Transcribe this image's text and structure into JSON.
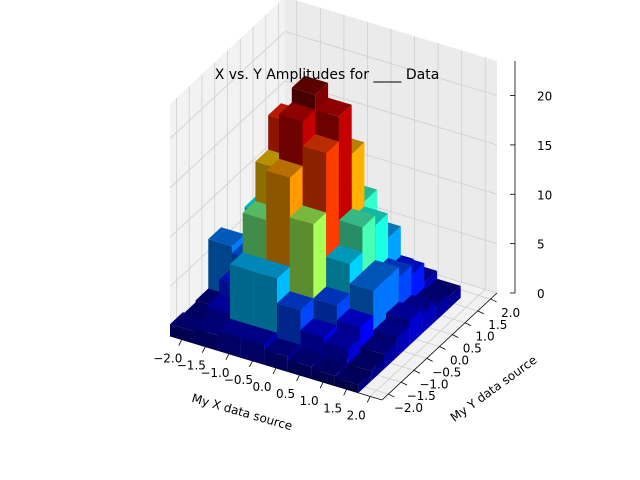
{
  "chart_data": {
    "type": "bar3d",
    "title": "X vs. Y Amplitudes for ____ Data",
    "xlabel": "My X data source",
    "ylabel": "My Y data source",
    "zlabel": "",
    "x_ticks": [
      "−2.0",
      "−1.5",
      "−1.0",
      "−0.5",
      "0.0",
      "0.5",
      "1.0",
      "1.5",
      "2.0"
    ],
    "y_ticks": [
      "−2.0",
      "−1.5",
      "−1.0",
      "−0.5",
      "0.0",
      "0.5",
      "1.0",
      "1.5",
      "2.0"
    ],
    "z_ticks": [
      "0",
      "5",
      "10",
      "15",
      "20"
    ],
    "xlim": [
      -2.0,
      2.0
    ],
    "ylim": [
      -2.0,
      2.0
    ],
    "zlim": [
      0,
      23.5
    ],
    "colormap": "jet",
    "grid": true,
    "bars": [
      {
        "x": -2.0,
        "y": -2.0,
        "z": 1.2
      },
      {
        "x": -2.0,
        "y": -1.5,
        "z": 1.0
      },
      {
        "x": -2.0,
        "y": -1.0,
        "z": 1.2
      },
      {
        "x": -2.0,
        "y": -0.5,
        "z": 6.2
      },
      {
        "x": -2.0,
        "y": 0.0,
        "z": 3.0
      },
      {
        "x": -2.0,
        "y": 0.5,
        "z": 3.5
      },
      {
        "x": -2.0,
        "y": 1.0,
        "z": 2.5
      },
      {
        "x": -2.0,
        "y": 1.5,
        "z": 1.5
      },
      {
        "x": -1.5,
        "y": -2.0,
        "z": 1.5
      },
      {
        "x": -1.5,
        "y": -1.5,
        "z": 2.5
      },
      {
        "x": -1.5,
        "y": -1.0,
        "z": 4.0
      },
      {
        "x": -1.5,
        "y": -0.5,
        "z": 5.5
      },
      {
        "x": -1.5,
        "y": 0.0,
        "z": 9.0
      },
      {
        "x": -1.5,
        "y": 0.5,
        "z": 7.0
      },
      {
        "x": -1.5,
        "y": 1.0,
        "z": 5.0
      },
      {
        "x": -1.5,
        "y": 1.5,
        "z": 2.5
      },
      {
        "x": -1.0,
        "y": -2.0,
        "z": 2.0
      },
      {
        "x": -1.0,
        "y": -1.5,
        "z": 7.5
      },
      {
        "x": -1.0,
        "y": -1.0,
        "z": 11.5
      },
      {
        "x": -1.0,
        "y": -0.5,
        "z": 15.5
      },
      {
        "x": -1.0,
        "y": 0.0,
        "z": 19.0
      },
      {
        "x": -1.0,
        "y": 0.5,
        "z": 14.5
      },
      {
        "x": -1.0,
        "y": 1.0,
        "z": 9.5
      },
      {
        "x": -1.0,
        "y": 1.5,
        "z": 3.0
      },
      {
        "x": -0.5,
        "y": -2.0,
        "z": 2.0
      },
      {
        "x": -0.5,
        "y": -1.5,
        "z": 7.5
      },
      {
        "x": -0.5,
        "y": -1.0,
        "z": 16.5
      },
      {
        "x": -0.5,
        "y": -0.5,
        "z": 21.0
      },
      {
        "x": -0.5,
        "y": 0.0,
        "z": 22.5
      },
      {
        "x": -0.5,
        "y": 0.5,
        "z": 17.5
      },
      {
        "x": -0.5,
        "y": 1.0,
        "z": 11.0
      },
      {
        "x": -0.5,
        "y": 1.5,
        "z": 3.5
      },
      {
        "x": 0.0,
        "y": -2.0,
        "z": 1.5
      },
      {
        "x": 0.0,
        "y": -1.5,
        "z": 5.0
      },
      {
        "x": 0.0,
        "y": -1.0,
        "z": 12.5
      },
      {
        "x": 0.0,
        "y": -0.5,
        "z": 18.5
      },
      {
        "x": 0.0,
        "y": 0.0,
        "z": 21.0
      },
      {
        "x": 0.0,
        "y": 0.5,
        "z": 16.0
      },
      {
        "x": 0.0,
        "y": 1.0,
        "z": 10.0
      },
      {
        "x": 0.0,
        "y": 1.5,
        "z": 3.0
      },
      {
        "x": 0.5,
        "y": -2.0,
        "z": 1.2
      },
      {
        "x": 0.5,
        "y": -1.5,
        "z": 3.0
      },
      {
        "x": 0.5,
        "y": -1.0,
        "z": 5.0
      },
      {
        "x": 0.5,
        "y": -0.5,
        "z": 8.0
      },
      {
        "x": 0.5,
        "y": 0.0,
        "z": 10.5
      },
      {
        "x": 0.5,
        "y": 0.5,
        "z": 9.5
      },
      {
        "x": 0.5,
        "y": 1.0,
        "z": 7.0
      },
      {
        "x": 0.5,
        "y": 1.5,
        "z": 2.5
      },
      {
        "x": 1.0,
        "y": -2.0,
        "z": 1.0
      },
      {
        "x": 1.0,
        "y": -1.5,
        "z": 2.5
      },
      {
        "x": 1.0,
        "y": -1.0,
        "z": 3.5
      },
      {
        "x": 1.0,
        "y": -0.5,
        "z": 6.0
      },
      {
        "x": 1.0,
        "y": 0.0,
        "z": 6.0
      },
      {
        "x": 1.0,
        "y": 0.5,
        "z": 5.0
      },
      {
        "x": 1.0,
        "y": 1.0,
        "z": 4.0
      },
      {
        "x": 1.0,
        "y": 1.5,
        "z": 2.0
      },
      {
        "x": 1.5,
        "y": -2.0,
        "z": 0.8
      },
      {
        "x": 1.5,
        "y": -1.5,
        "z": 1.0
      },
      {
        "x": 1.5,
        "y": -1.0,
        "z": 1.5
      },
      {
        "x": 1.5,
        "y": -0.5,
        "z": 2.0
      },
      {
        "x": 1.5,
        "y": 0.0,
        "z": 2.5
      },
      {
        "x": 1.5,
        "y": 0.5,
        "z": 2.0
      },
      {
        "x": 1.5,
        "y": 1.0,
        "z": 1.5
      },
      {
        "x": 1.5,
        "y": 1.5,
        "z": 1.2
      }
    ]
  }
}
